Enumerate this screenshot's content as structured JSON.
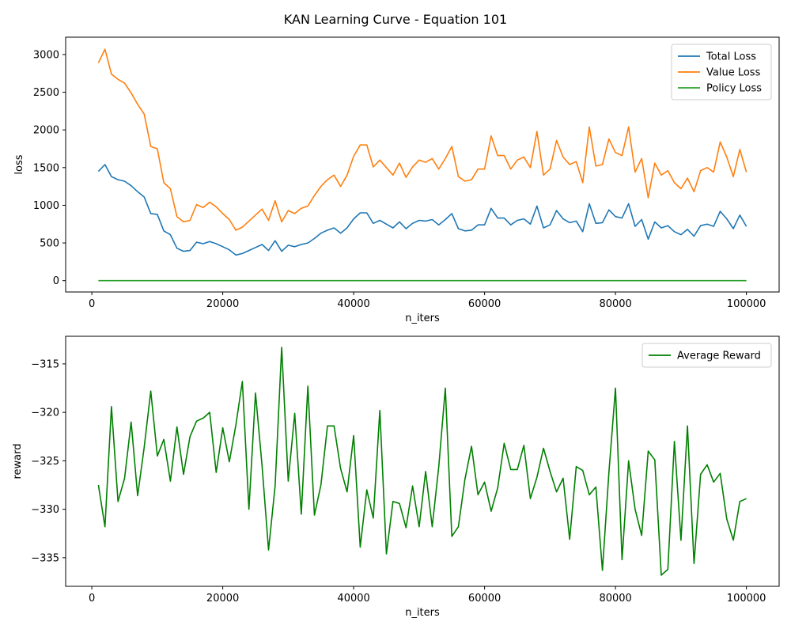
{
  "figure": {
    "title": "KAN Learning Curve - Equation 101"
  },
  "colors": {
    "total_loss": "#1f77b4",
    "value_loss": "#ff7f0e",
    "policy_loss": "#2ca02c",
    "average_reward": "#008000",
    "axis": "#000000",
    "legend_border": "#cccccc"
  },
  "chart_data": [
    {
      "type": "line",
      "xlabel": "n_iters",
      "ylabel": "loss",
      "xlim": [
        -4000,
        105000
      ],
      "ylim": [
        -150,
        3230
      ],
      "xticks": [
        0,
        20000,
        40000,
        60000,
        80000,
        100000
      ],
      "xtick_labels": [
        "0",
        "20000",
        "40000",
        "60000",
        "80000",
        "100000"
      ],
      "yticks": [
        0,
        500,
        1000,
        1500,
        2000,
        2500,
        3000
      ],
      "ytick_labels": [
        "0",
        "500",
        "1000",
        "1500",
        "2000",
        "2500",
        "3000"
      ],
      "grid": false,
      "legend_position": "upper right",
      "x": [
        1000,
        2000,
        3000,
        4000,
        5000,
        6000,
        7000,
        8000,
        9000,
        10000,
        11000,
        12000,
        13000,
        14000,
        15000,
        16000,
        17000,
        18000,
        19000,
        20000,
        21000,
        22000,
        23000,
        24000,
        25000,
        26000,
        27000,
        28000,
        29000,
        30000,
        31000,
        32000,
        33000,
        34000,
        35000,
        36000,
        37000,
        38000,
        39000,
        40000,
        41000,
        42000,
        43000,
        44000,
        45000,
        46000,
        47000,
        48000,
        49000,
        50000,
        51000,
        52000,
        53000,
        54000,
        55000,
        56000,
        57000,
        58000,
        59000,
        60000,
        61000,
        62000,
        63000,
        64000,
        65000,
        66000,
        67000,
        68000,
        69000,
        70000,
        71000,
        72000,
        73000,
        74000,
        75000,
        76000,
        77000,
        78000,
        79000,
        80000,
        81000,
        82000,
        83000,
        84000,
        85000,
        86000,
        87000,
        88000,
        89000,
        90000,
        91000,
        92000,
        93000,
        94000,
        95000,
        96000,
        97000,
        98000,
        99000,
        100000
      ],
      "series": [
        {
          "name": "Total Loss",
          "color_key": "total_loss",
          "values": [
            1450,
            1540,
            1380,
            1340,
            1320,
            1260,
            1180,
            1110,
            890,
            880,
            660,
            610,
            430,
            390,
            400,
            510,
            490,
            520,
            490,
            450,
            410,
            340,
            360,
            400,
            440,
            480,
            400,
            530,
            390,
            470,
            450,
            480,
            500,
            560,
            630,
            670,
            700,
            630,
            700,
            820,
            900,
            900,
            760,
            800,
            750,
            700,
            780,
            690,
            760,
            800,
            790,
            810,
            740,
            810,
            890,
            690,
            660,
            670,
            740,
            740,
            960,
            830,
            830,
            740,
            800,
            820,
            750,
            990,
            700,
            740,
            930,
            820,
            770,
            790,
            650,
            1020,
            760,
            770,
            940,
            850,
            830,
            1020,
            720,
            810,
            550,
            780,
            700,
            730,
            650,
            610,
            680,
            590,
            730,
            750,
            720,
            920,
            820,
            690,
            870,
            720
          ]
        },
        {
          "name": "Value Loss",
          "color_key": "value_loss",
          "values": [
            2890,
            3070,
            2740,
            2670,
            2620,
            2490,
            2340,
            2210,
            1780,
            1750,
            1300,
            1220,
            850,
            780,
            800,
            1010,
            970,
            1040,
            980,
            890,
            810,
            670,
            710,
            790,
            870,
            950,
            800,
            1060,
            780,
            930,
            890,
            960,
            990,
            1130,
            1250,
            1340,
            1400,
            1250,
            1400,
            1650,
            1800,
            1800,
            1510,
            1600,
            1500,
            1400,
            1560,
            1370,
            1510,
            1600,
            1570,
            1620,
            1480,
            1620,
            1780,
            1380,
            1320,
            1340,
            1480,
            1480,
            1920,
            1660,
            1660,
            1480,
            1600,
            1640,
            1500,
            1980,
            1400,
            1480,
            1860,
            1640,
            1540,
            1580,
            1300,
            2040,
            1520,
            1540,
            1880,
            1700,
            1660,
            2040,
            1440,
            1620,
            1100,
            1560,
            1400,
            1460,
            1300,
            1220,
            1360,
            1180,
            1460,
            1500,
            1440,
            1840,
            1640,
            1380,
            1740,
            1440
          ]
        },
        {
          "name": "Policy Loss",
          "color_key": "policy_loss",
          "values": [
            0,
            0,
            0,
            0,
            0,
            0,
            0,
            0,
            0,
            0,
            0,
            0,
            0,
            0,
            0,
            0,
            0,
            0,
            0,
            0,
            0,
            0,
            0,
            0,
            0,
            0,
            0,
            0,
            0,
            0,
            0,
            0,
            0,
            0,
            0,
            0,
            0,
            0,
            0,
            0,
            0,
            0,
            0,
            0,
            0,
            0,
            0,
            0,
            0,
            0,
            0,
            0,
            0,
            0,
            0,
            0,
            0,
            0,
            0,
            0,
            0,
            0,
            0,
            0,
            0,
            0,
            0,
            0,
            0,
            0,
            0,
            0,
            0,
            0,
            0,
            0,
            0,
            0,
            0,
            0,
            0,
            0,
            0,
            0,
            0,
            0,
            0,
            0,
            0,
            0,
            0,
            0,
            0,
            0,
            0,
            0,
            0,
            0,
            0,
            0
          ]
        }
      ]
    },
    {
      "type": "line",
      "xlabel": "n_iters",
      "ylabel": "reward",
      "xlim": [
        -4000,
        105000
      ],
      "ylim": [
        -337.95,
        -312.15
      ],
      "xticks": [
        0,
        20000,
        40000,
        60000,
        80000,
        100000
      ],
      "xtick_labels": [
        "0",
        "20000",
        "40000",
        "60000",
        "80000",
        "100000"
      ],
      "yticks": [
        -335,
        -330,
        -325,
        -320,
        -315
      ],
      "ytick_labels": [
        "−335",
        "−330",
        "−325",
        "−320",
        "−315"
      ],
      "grid": false,
      "legend_position": "upper right",
      "x": [
        1000,
        2000,
        3000,
        4000,
        5000,
        6000,
        7000,
        8000,
        9000,
        10000,
        11000,
        12000,
        13000,
        14000,
        15000,
        16000,
        17000,
        18000,
        19000,
        20000,
        21000,
        22000,
        23000,
        24000,
        25000,
        26000,
        27000,
        28000,
        29000,
        30000,
        31000,
        32000,
        33000,
        34000,
        35000,
        36000,
        37000,
        38000,
        39000,
        40000,
        41000,
        42000,
        43000,
        44000,
        45000,
        46000,
        47000,
        48000,
        49000,
        50000,
        51000,
        52000,
        53000,
        54000,
        55000,
        56000,
        57000,
        58000,
        59000,
        60000,
        61000,
        62000,
        63000,
        64000,
        65000,
        66000,
        67000,
        68000,
        69000,
        70000,
        71000,
        72000,
        73000,
        74000,
        75000,
        76000,
        77000,
        78000,
        79000,
        80000,
        81000,
        82000,
        83000,
        84000,
        85000,
        86000,
        87000,
        88000,
        89000,
        90000,
        91000,
        92000,
        93000,
        94000,
        95000,
        96000,
        97000,
        98000,
        99000,
        100000
      ],
      "series": [
        {
          "name": "Average Reward",
          "color_key": "average_reward",
          "values": [
            -327.5,
            -331.8,
            -319.4,
            -329.2,
            -326.8,
            -321.0,
            -328.6,
            -323.6,
            -317.8,
            -324.5,
            -322.8,
            -327.1,
            -321.5,
            -326.4,
            -322.5,
            -320.9,
            -320.6,
            -320.0,
            -326.2,
            -321.6,
            -325.1,
            -321.3,
            -316.8,
            -330.0,
            -318.0,
            -325.5,
            -334.2,
            -327.6,
            -313.3,
            -327.1,
            -320.1,
            -330.5,
            -317.3,
            -330.6,
            -327.5,
            -321.4,
            -321.4,
            -325.8,
            -328.2,
            -322.4,
            -333.9,
            -328.0,
            -330.9,
            -319.8,
            -334.6,
            -329.2,
            -329.4,
            -331.9,
            -327.6,
            -331.8,
            -326.1,
            -331.8,
            -325.6,
            -317.5,
            -332.8,
            -331.8,
            -326.9,
            -323.5,
            -328.5,
            -327.2,
            -330.2,
            -327.8,
            -323.2,
            -325.9,
            -325.9,
            -323.4,
            -328.9,
            -326.7,
            -323.7,
            -326.1,
            -328.2,
            -326.8,
            -333.1,
            -325.6,
            -326.0,
            -328.5,
            -327.7,
            -336.3,
            -326.2,
            -317.5,
            -335.2,
            -325.0,
            -330.0,
            -332.7,
            -324.0,
            -324.9,
            -336.8,
            -336.2,
            -323.0,
            -333.2,
            -321.4,
            -335.6,
            -326.4,
            -325.4,
            -327.2,
            -326.3,
            -331.0,
            -333.2,
            -329.2,
            -328.9
          ]
        }
      ]
    }
  ]
}
